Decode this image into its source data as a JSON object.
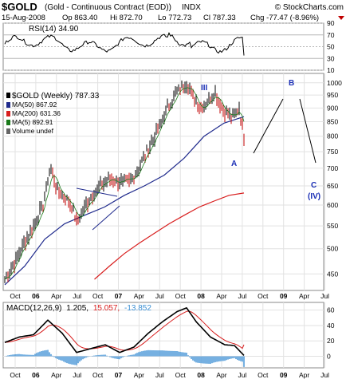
{
  "header": {
    "symbol": "$GOLD",
    "name": "(Gold - Continuous Contract (EOD))",
    "exchange": "INDX",
    "watermark": "© StockCharts.com",
    "date": "15-Aug-2008",
    "open": "Op 863.40",
    "high": "Hi 872.70",
    "low": "Lo 772.73",
    "close": "Cl 787.33",
    "change": "Chg -77.47 (-8.96%)"
  },
  "rsi_panel": {
    "label": "RSI(14) 34.90",
    "tick_labels": [
      "90",
      "70",
      "50",
      "30",
      "10"
    ]
  },
  "price_panel": {
    "legend": {
      "main": "$GOLD (Weekly) 787.33",
      "ma50": "MA(50) 867.92",
      "ma200": "MA(200) 631.36",
      "ma5": "MA(5) 892.91",
      "volume": "Volume undef"
    },
    "wave_labels": {
      "iii": "III",
      "a": "A",
      "b": "B",
      "c": "C",
      "iv": "(IV)"
    },
    "tick_labels": [
      "1000",
      "950",
      "900",
      "850",
      "800",
      "750",
      "700",
      "650",
      "600",
      "550",
      "500",
      "450"
    ]
  },
  "macd_panel": {
    "label_prefix": "MACD(12,26,9)",
    "macd_value": "1.205,",
    "signal_value": "15.057,",
    "hist_value": "-13.852",
    "tick_labels": [
      "60",
      "40",
      "20",
      "0"
    ]
  },
  "x_axis": {
    "labels": [
      "Oct",
      "06",
      "Apr",
      "Jul",
      "Oct",
      "07",
      "Apr",
      "Jul",
      "Oct",
      "08",
      "Apr",
      "Jul",
      "Oct",
      "09",
      "Apr",
      "Jul"
    ]
  },
  "colors": {
    "price": "#000000",
    "ma50": "#1f2a8c",
    "ma200": "#d81e1e",
    "ma5": "#1a7a1a",
    "volume": "#666666",
    "wave_label": "#1a2eb5",
    "change_negative": "#c00000",
    "macd_hist": "#3b8fd4",
    "rsi_fill": "#6aa84f"
  },
  "chart_data": {
    "type": "line",
    "title": "$GOLD (Gold - Continuous Contract (EOD)) INDX",
    "xlabel": "",
    "ylabel": "",
    "x": [
      "Oct 05",
      "06",
      "Apr 06",
      "Jul 06",
      "Oct 06",
      "07",
      "Apr 07",
      "Jul 07",
      "Oct 07",
      "08",
      "Apr 08",
      "Jul 08",
      "Aug 08"
    ],
    "ylim": [
      420,
      1040
    ],
    "y_scale": "log",
    "grid": true,
    "legend_position": "top-left",
    "series": [
      {
        "name": "$GOLD (Weekly)",
        "values": [
          465,
          540,
          600,
          640,
          590,
          630,
          670,
          660,
          730,
          910,
          960,
          940,
          787
        ]
      },
      {
        "name": "MA(50)",
        "values": [
          430,
          465,
          520,
          555,
          575,
          595,
          625,
          650,
          680,
          730,
          800,
          845,
          868
        ]
      },
      {
        "name": "MA(200)",
        "values": [
          400,
          415,
          440,
          465,
          490,
          512,
          533,
          555,
          575,
          595,
          610,
          625,
          631
        ]
      }
    ],
    "projection": [
      {
        "label": "B",
        "period": "Oct 08 – Jan 09",
        "from": 787,
        "to": 1000
      },
      {
        "label": "C",
        "period": "Jan 09 – Jul 09",
        "from": 1000,
        "to": 760
      }
    ],
    "rsi": {
      "period": 14,
      "last": 34.9,
      "ylim": [
        10,
        90
      ]
    },
    "macd": {
      "params": "12,26,9",
      "macd": 1.205,
      "signal": 15.057,
      "histogram": -13.852,
      "ylim": [
        -15,
        70
      ]
    }
  }
}
